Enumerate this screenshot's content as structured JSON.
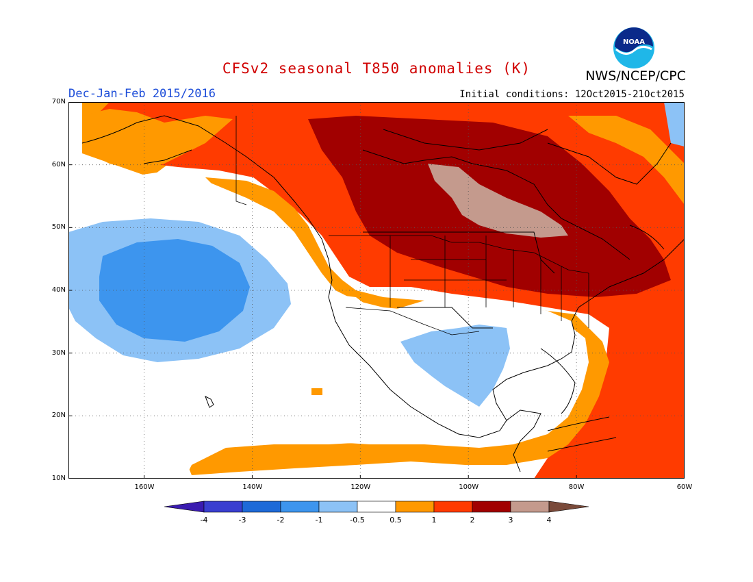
{
  "title": "CFSv2 seasonal T850 anomalies (K)",
  "organization": "NWS/NCEP/CPC",
  "logo_text": "NOAA",
  "season": "Dec-Jan-Feb 2015/2016",
  "initial_conditions": "Initial conditions: 12Oct2015-21Oct2015",
  "map": {
    "lon_range": [
      -174,
      -60
    ],
    "lat_range": [
      10,
      70
    ],
    "lat_ticks": [
      {
        "value": 70,
        "label": "70N"
      },
      {
        "value": 60,
        "label": "60N"
      },
      {
        "value": 50,
        "label": "50N"
      },
      {
        "value": 40,
        "label": "40N"
      },
      {
        "value": 30,
        "label": "30N"
      },
      {
        "value": 20,
        "label": "20N"
      },
      {
        "value": 10,
        "label": "10N"
      }
    ],
    "lon_ticks": [
      {
        "value": -160,
        "label": "160W"
      },
      {
        "value": -140,
        "label": "140W"
      },
      {
        "value": -120,
        "label": "120W"
      },
      {
        "value": -100,
        "label": "100W"
      },
      {
        "value": -80,
        "label": "80W"
      },
      {
        "value": -60,
        "label": "60W"
      }
    ],
    "gridlines": "dotted"
  },
  "colorbar": {
    "labels": [
      "-4",
      "-3",
      "-2",
      "-1",
      "-0.5",
      "0.5",
      "1",
      "2",
      "3",
      "4"
    ],
    "colors": [
      "#3a1bb0",
      "#3a3fd0",
      "#1e6ad8",
      "#3d95ee",
      "#8cc2f6",
      "#ffffff",
      "#ff9900",
      "#ff3b00",
      "#a10000",
      "#c49a8d",
      "#7a4a3a"
    ]
  },
  "colors": {
    "cold_1": "#8cc2f6",
    "cold_2": "#3d95ee",
    "warm_1": "#ff9900",
    "warm_2": "#ff3b00",
    "warm_3": "#a10000",
    "warm_4": "#c49a8d"
  }
}
